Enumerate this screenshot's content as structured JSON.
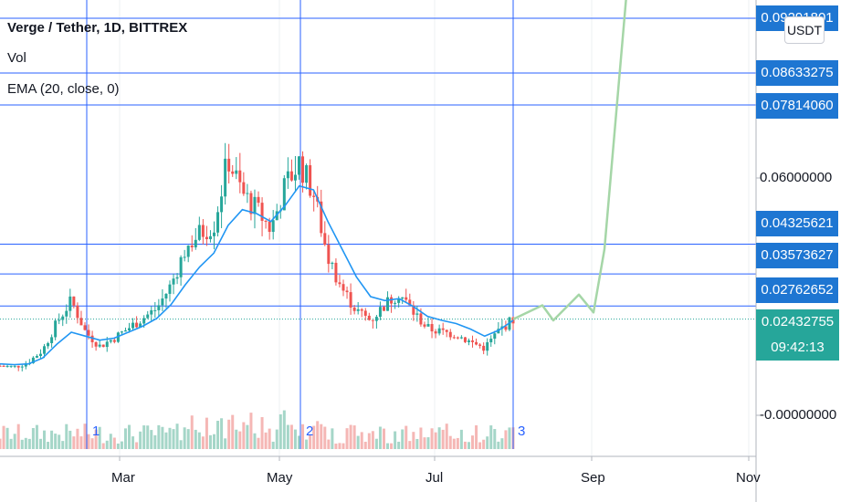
{
  "legend": {
    "title": "Verge / Tether, 1D, BITTREX",
    "vol": "Vol",
    "ema": "EMA (20, close, 0)"
  },
  "currency_button": "USDT",
  "price_scale": {
    "line_labels": [
      "0.09291801",
      "0.08633275",
      "0.07814060",
      "0.04325621",
      "0.03573627",
      "0.02762652"
    ],
    "plain_labels": [
      "0.06000000",
      "-0.00000000"
    ],
    "current_price": "0.02432755",
    "countdown": "09:42:13"
  },
  "time_axis": {
    "labels": [
      "Mar",
      "May",
      "Jul",
      "Sep",
      "Nov"
    ]
  },
  "markers": [
    "1",
    "2",
    "3"
  ],
  "colors": {
    "up": "#26a69a",
    "down": "#ef5350",
    "ema": "#2196f3",
    "hline": "#2962ff",
    "projection": "#a5d6a7",
    "label_bg": "#1e76d2",
    "current_bg": "#26a69a"
  },
  "chart_data": {
    "type": "candlestick",
    "title": "Verge / Tether, 1D, BITTREX",
    "y_scale": "linear",
    "horizontal_lines": [
      0.09291801,
      0.08633275,
      0.0781406,
      0.04325621,
      0.03573627,
      0.02762652
    ],
    "current_price": 0.02432755,
    "y_ticks": [
      0.06,
      0
    ],
    "x_ticks": [
      "Mar",
      "May",
      "Jul",
      "Sep",
      "Nov"
    ],
    "price_series": [
      0.0125,
      0.0122,
      0.0135,
      0.0165,
      0.0235,
      0.029,
      0.021,
      0.0175,
      0.0195,
      0.022,
      0.0245,
      0.027,
      0.033,
      0.042,
      0.046,
      0.048,
      0.065,
      0.056,
      0.052,
      0.047,
      0.058,
      0.064,
      0.056,
      0.04,
      0.032,
      0.0265,
      0.024,
      0.028,
      0.031,
      0.026,
      0.022,
      0.021,
      0.0205,
      0.0185,
      0.017,
      0.0215,
      0.0243
    ],
    "ema_series": [
      0.013,
      0.0128,
      0.013,
      0.0145,
      0.018,
      0.021,
      0.02,
      0.019,
      0.0195,
      0.021,
      0.0225,
      0.0245,
      0.028,
      0.033,
      0.0375,
      0.041,
      0.048,
      0.052,
      0.051,
      0.049,
      0.053,
      0.058,
      0.057,
      0.049,
      0.042,
      0.035,
      0.03,
      0.029,
      0.0295,
      0.0275,
      0.025,
      0.024,
      0.0232,
      0.0218,
      0.02,
      0.0215,
      0.024
    ],
    "projection": [
      0.0243,
      0.0278,
      0.024,
      0.0305,
      0.026,
      0.042,
      0.098
    ],
    "markers": [
      "1",
      "2",
      "3"
    ]
  }
}
